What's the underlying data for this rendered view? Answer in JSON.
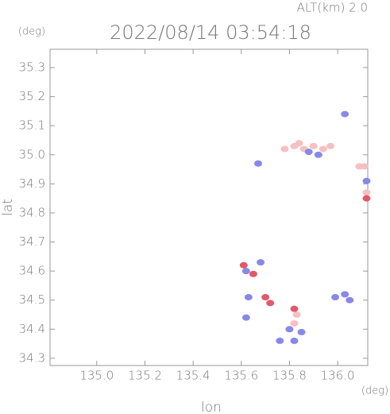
{
  "chart_data": {
    "type": "scatter",
    "title": "2022/08/14 03:54:18",
    "subtitle": "ALT(km) 2.0",
    "x_label": "lon",
    "y_label": "lat",
    "x_unit": "(deg)",
    "y_unit": "(deg)",
    "xlim": [
      134.806,
      136.125
    ],
    "ylim": [
      34.275,
      35.363
    ],
    "xticks": [
      {
        "value": 135,
        "label": "135.0"
      },
      135.2,
      135.4,
      135.6,
      135.8,
      {
        "value": 136,
        "label": "136.0"
      }
    ],
    "yticks": [
      34.3,
      34.4,
      34.5,
      34.6,
      34.7,
      34.8,
      34.9,
      {
        "value": 35,
        "label": "35.0"
      },
      35.1,
      35.2,
      35.3
    ],
    "series": [
      {
        "color": "#f6c0c0",
        "x": [
          135.78,
          135.82,
          135.86,
          135.9,
          135.94,
          135.97,
          135.84,
          136.09,
          136.11,
          135.83,
          135.82,
          136.12
        ],
        "y": [
          35.02,
          35.03,
          35.02,
          35.03,
          35.02,
          35.03,
          35.04,
          34.96,
          34.96,
          34.45,
          34.42,
          34.87
        ]
      },
      {
        "color": "#8888e8",
        "x": [
          135.88,
          135.92,
          135.67,
          136.03,
          136.12,
          135.62,
          135.63,
          136.03,
          135.99,
          136.05,
          135.8,
          135.85,
          135.82,
          135.76,
          135.62,
          135.68
        ],
        "y": [
          35.01,
          35.0,
          34.97,
          35.14,
          34.91,
          34.6,
          34.51,
          34.52,
          34.51,
          34.5,
          34.4,
          34.39,
          34.36,
          34.36,
          34.44,
          34.63
        ]
      },
      {
        "color": "#e05a6a",
        "x": [
          135.61,
          135.65,
          135.7,
          135.82,
          135.72,
          136.12
        ],
        "y": [
          34.62,
          34.59,
          34.51,
          34.47,
          34.49,
          34.85
        ]
      }
    ]
  }
}
